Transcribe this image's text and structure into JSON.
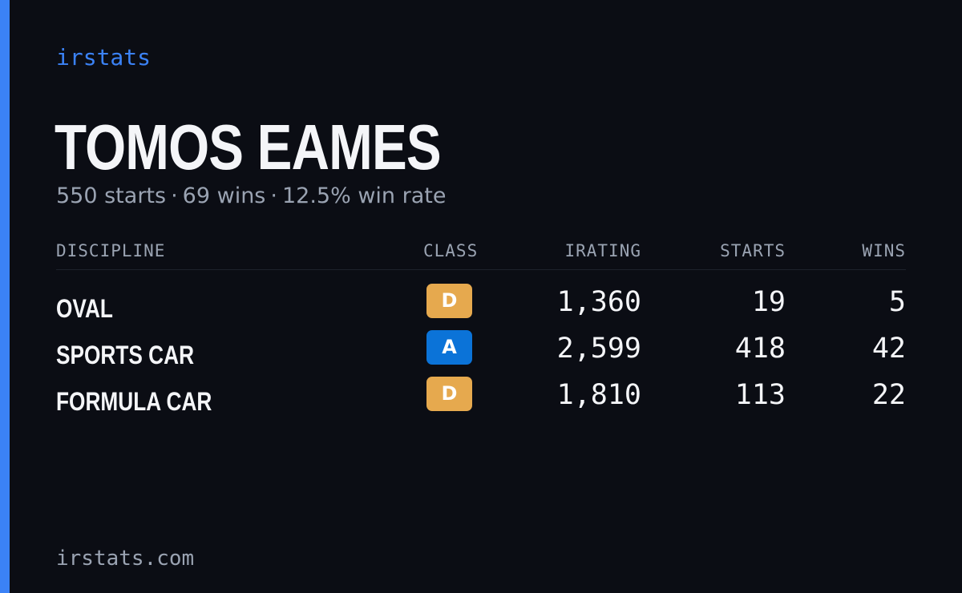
{
  "brand": "irstats",
  "driver": {
    "name": "TOMOS EAMES",
    "starts_text": "550 starts",
    "wins_text": "69 wins",
    "win_rate_text": "12.5% win rate",
    "separator": "·"
  },
  "table": {
    "headers": {
      "discipline": "DISCIPLINE",
      "class": "CLASS",
      "irating": "IRATING",
      "starts": "STARTS",
      "wins": "WINS"
    },
    "rows": [
      {
        "discipline": "OVAL",
        "class": "D",
        "irating": "1,360",
        "starts": "19",
        "wins": "5"
      },
      {
        "discipline": "SPORTS CAR",
        "class": "A",
        "irating": "2,599",
        "starts": "418",
        "wins": "42"
      },
      {
        "discipline": "FORMULA CAR",
        "class": "D",
        "irating": "1,810",
        "starts": "113",
        "wins": "22"
      }
    ]
  },
  "class_colors": {
    "A": "#0b73d8",
    "D": "#e6a94e"
  },
  "colors": {
    "accent": "#3b82f6",
    "background": "#0b0d14",
    "muted_text": "#9aa3b2",
    "primary_text": "#f4f5f8"
  },
  "footer": "irstats.com"
}
